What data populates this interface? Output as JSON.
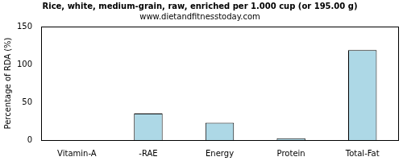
{
  "chart_data": {
    "type": "bar",
    "title": "Rice, white, medium-grain, raw, enriched per 1.000 cup (or 195.00 g)",
    "subtitle": "www.dietandfitnesstoday.com",
    "y_label": "Percentage of RDA (%)",
    "categories": [
      "Vitamin-A",
      "-RAE",
      "Energy",
      "Protein",
      "Total-Fat"
    ],
    "values": [
      0,
      35,
      23,
      2.5,
      119
    ],
    "color": "#add8e6",
    "ylim": [
      0,
      150
    ],
    "yticks": [
      0,
      50,
      100,
      150
    ],
    "grid": false
  }
}
